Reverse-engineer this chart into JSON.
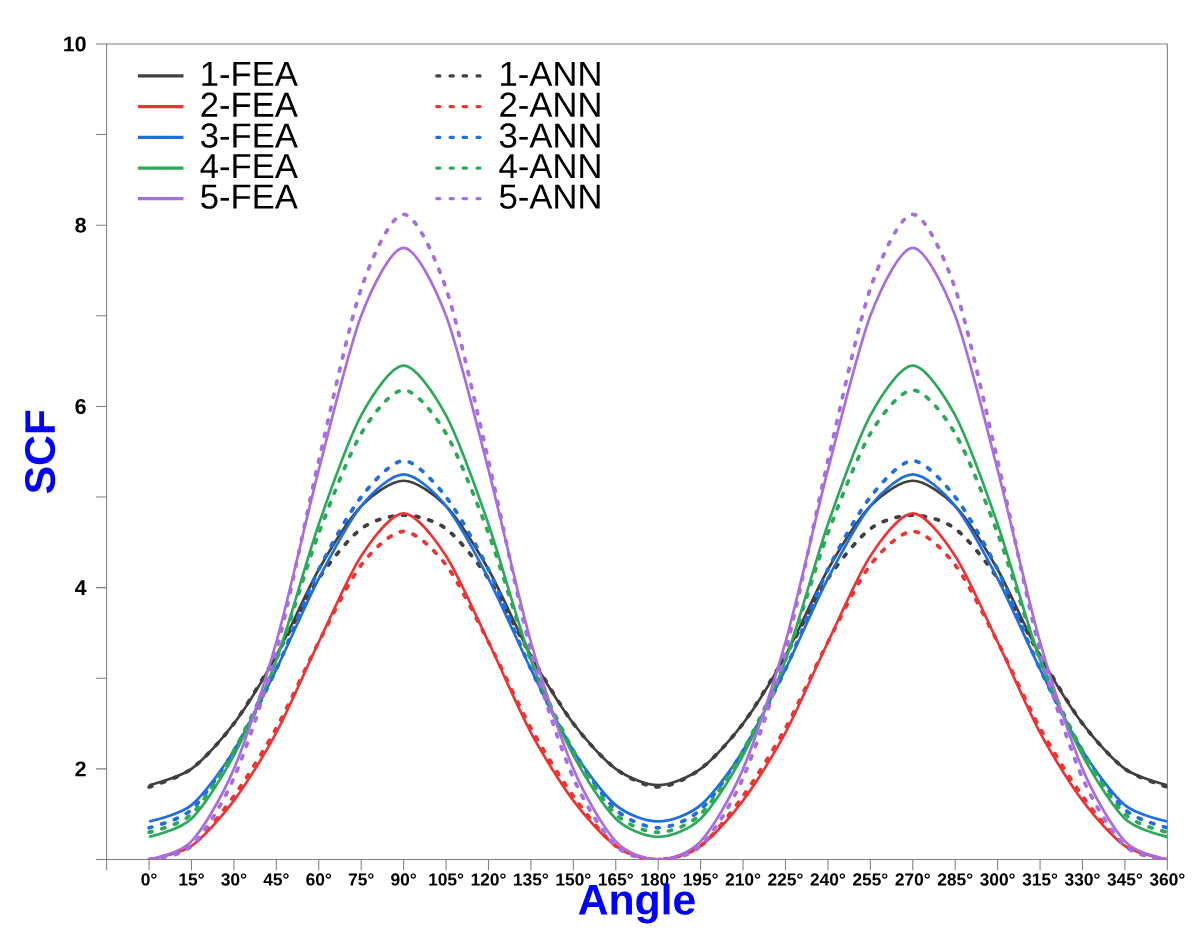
{
  "chart_data": {
    "type": "line",
    "xlabel": "Angle",
    "ylabel": "SCF",
    "x": [
      0,
      15,
      30,
      45,
      60,
      75,
      90,
      105,
      120,
      135,
      150,
      165,
      180,
      195,
      210,
      225,
      240,
      255,
      270,
      285,
      300,
      315,
      330,
      345,
      360
    ],
    "series": [
      {
        "name": "1-FEA",
        "color": "#404040",
        "line_style": "solid",
        "values": [
          1.82,
          2.0,
          2.5,
          3.25,
          4.2,
          4.9,
          5.18,
          4.9,
          4.2,
          3.25,
          2.5,
          2.0,
          1.82,
          2.0,
          2.5,
          3.25,
          4.2,
          4.9,
          5.18,
          4.9,
          4.2,
          3.25,
          2.5,
          2.0,
          1.82
        ]
      },
      {
        "name": "1-ANN",
        "color": "#404040",
        "line_style": "dotted",
        "values": [
          1.8,
          2.0,
          2.5,
          3.25,
          4.1,
          4.65,
          4.8,
          4.65,
          4.1,
          3.25,
          2.5,
          2.0,
          1.8,
          2.0,
          2.5,
          3.25,
          4.1,
          4.65,
          4.8,
          4.65,
          4.1,
          3.25,
          2.5,
          2.0,
          1.8
        ]
      },
      {
        "name": "2-FEA",
        "color": "#ee3333",
        "line_style": "solid",
        "values": [
          1.0,
          1.15,
          1.65,
          2.4,
          3.4,
          4.35,
          4.82,
          4.35,
          3.4,
          2.4,
          1.65,
          1.15,
          1.0,
          1.15,
          1.65,
          2.4,
          3.4,
          4.35,
          4.82,
          4.35,
          3.4,
          2.4,
          1.65,
          1.15,
          1.0
        ]
      },
      {
        "name": "2-ANN",
        "color": "#ee3333",
        "line_style": "dotted",
        "values": [
          1.0,
          1.15,
          1.7,
          2.45,
          3.4,
          4.25,
          4.62,
          4.25,
          3.4,
          2.45,
          1.7,
          1.15,
          1.0,
          1.15,
          1.7,
          2.45,
          3.4,
          4.25,
          4.62,
          4.25,
          3.4,
          2.45,
          1.7,
          1.15,
          1.0
        ]
      },
      {
        "name": "3-FEA",
        "color": "#1f6fe0",
        "line_style": "solid",
        "values": [
          1.42,
          1.6,
          2.2,
          3.1,
          4.1,
          4.9,
          5.25,
          4.9,
          4.1,
          3.1,
          2.2,
          1.6,
          1.42,
          1.6,
          2.2,
          3.1,
          4.1,
          4.9,
          5.25,
          4.9,
          4.1,
          3.1,
          2.2,
          1.6,
          1.42
        ]
      },
      {
        "name": "3-ANN",
        "color": "#1f6fe0",
        "line_style": "dotted",
        "values": [
          1.35,
          1.55,
          2.2,
          3.1,
          4.2,
          5.0,
          5.4,
          5.0,
          4.2,
          3.1,
          2.2,
          1.55,
          1.35,
          1.55,
          2.2,
          3.1,
          4.2,
          5.0,
          5.4,
          5.0,
          4.2,
          3.1,
          2.2,
          1.55,
          1.35
        ]
      },
      {
        "name": "4-FEA",
        "color": "#2ea85a",
        "line_style": "solid",
        "values": [
          1.25,
          1.45,
          2.15,
          3.2,
          4.7,
          5.9,
          6.45,
          5.9,
          4.7,
          3.2,
          2.15,
          1.45,
          1.25,
          1.45,
          2.15,
          3.2,
          4.7,
          5.9,
          6.45,
          5.9,
          4.7,
          3.2,
          2.15,
          1.45,
          1.25
        ]
      },
      {
        "name": "4-ANN",
        "color": "#2ea85a",
        "line_style": "dotted",
        "values": [
          1.3,
          1.5,
          2.2,
          3.2,
          4.6,
          5.7,
          6.18,
          5.7,
          4.6,
          3.2,
          2.2,
          1.5,
          1.3,
          1.5,
          2.2,
          3.2,
          4.6,
          5.7,
          6.18,
          5.7,
          4.6,
          3.2,
          2.2,
          1.5,
          1.3
        ]
      },
      {
        "name": "5-FEA",
        "color": "#a66ee0",
        "line_style": "solid",
        "values": [
          1.0,
          1.2,
          2.0,
          3.4,
          5.3,
          7.0,
          7.75,
          7.0,
          5.3,
          3.4,
          2.0,
          1.2,
          1.0,
          1.2,
          2.0,
          3.4,
          5.3,
          7.0,
          7.75,
          7.0,
          5.3,
          3.4,
          2.0,
          1.2,
          1.0
        ]
      },
      {
        "name": "5-ANN",
        "color": "#a66ee0",
        "line_style": "dotted",
        "values": [
          1.0,
          1.15,
          1.9,
          3.3,
          5.4,
          7.3,
          8.12,
          7.3,
          5.4,
          3.3,
          1.9,
          1.15,
          1.0,
          1.15,
          1.9,
          3.3,
          5.4,
          7.3,
          8.12,
          7.3,
          5.4,
          3.3,
          1.9,
          1.15,
          1.0
        ]
      }
    ],
    "xlim": [
      -15,
      360
    ],
    "xticks": [
      {
        "value": -15,
        "label": null
      },
      {
        "value": 0,
        "label": "0°"
      },
      {
        "value": 15,
        "label": "15°"
      },
      {
        "value": 30,
        "label": "30°"
      },
      {
        "value": 45,
        "label": "45°"
      },
      {
        "value": 60,
        "label": "60°"
      },
      {
        "value": 75,
        "label": "75°"
      },
      {
        "value": 90,
        "label": "90°"
      },
      {
        "value": 105,
        "label": "105°"
      },
      {
        "value": 120,
        "label": "120°"
      },
      {
        "value": 135,
        "label": "135°"
      },
      {
        "value": 150,
        "label": "150°"
      },
      {
        "value": 165,
        "label": "165°"
      },
      {
        "value": 180,
        "label": "180°"
      },
      {
        "value": 195,
        "label": "195°"
      },
      {
        "value": 210,
        "label": "210°"
      },
      {
        "value": 225,
        "label": "225°"
      },
      {
        "value": 240,
        "label": "240°"
      },
      {
        "value": 255,
        "label": "255°"
      },
      {
        "value": 270,
        "label": "270°"
      },
      {
        "value": 285,
        "label": "285°"
      },
      {
        "value": 300,
        "label": "300°"
      },
      {
        "value": 315,
        "label": "315°"
      },
      {
        "value": 330,
        "label": "330°"
      },
      {
        "value": 345,
        "label": "345°"
      },
      {
        "value": 360,
        "label": "360°"
      }
    ],
    "ylim": [
      1,
      10
    ],
    "yticks": [
      {
        "value": 1,
        "label": null
      },
      2,
      {
        "value": 3,
        "label": null
      },
      4,
      {
        "value": 5,
        "label": null
      },
      6,
      {
        "value": 7,
        "label": null
      },
      8,
      {
        "value": 9,
        "label": null
      },
      10
    ],
    "legend": "top left",
    "grid": false,
    "marker": "none"
  }
}
